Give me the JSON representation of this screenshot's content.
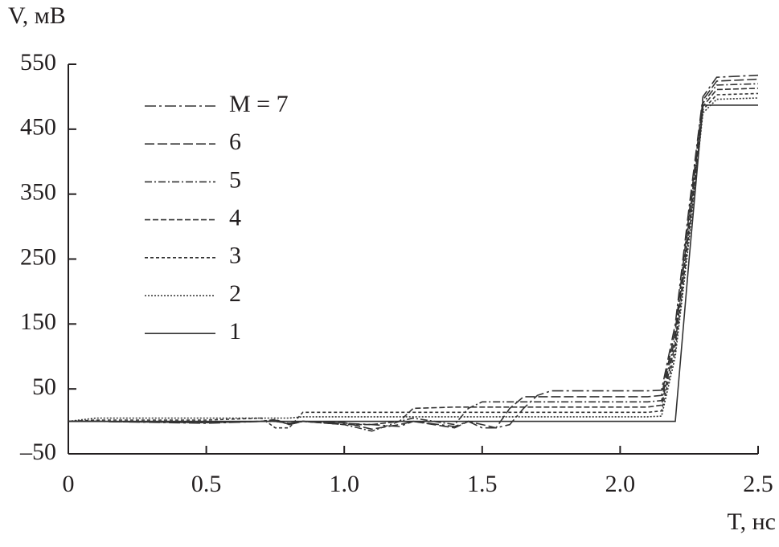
{
  "chart_data": {
    "type": "line",
    "y_label": "V, мВ",
    "x_label": "T, нс",
    "x": [
      0,
      0.1,
      0.5,
      0.7,
      0.75,
      0.8,
      0.85,
      1.0,
      1.1,
      1.2,
      1.25,
      1.4,
      1.45,
      1.5,
      1.55,
      1.6,
      1.65,
      1.7,
      1.75,
      2.1,
      2.15,
      2.2,
      2.25,
      2.3,
      2.35,
      2.5
    ],
    "series": [
      {
        "name": "M = 7",
        "color": "#333333",
        "dash": "14 4 3 4",
        "values": [
          0,
          0,
          -3,
          0,
          2,
          -5,
          0,
          -3,
          -5,
          -8,
          0,
          -8,
          0,
          -10,
          -10,
          -5,
          20,
          40,
          47,
          47,
          48,
          150,
          330,
          500,
          530,
          533
        ]
      },
      {
        "name": "6",
        "color": "#333333",
        "dash": "12 4",
        "values": [
          0,
          0,
          -2,
          0,
          0,
          -3,
          0,
          -2,
          -12,
          -5,
          0,
          -10,
          0,
          -5,
          -10,
          20,
          38,
          38,
          38,
          38,
          40,
          140,
          320,
          495,
          524,
          527
        ]
      },
      {
        "name": "5",
        "color": "#333333",
        "dash": "9 3 2 3",
        "values": [
          0,
          0,
          -2,
          0,
          0,
          -3,
          0,
          -5,
          -15,
          0,
          5,
          -5,
          20,
          30,
          30,
          30,
          30,
          30,
          30,
          30,
          32,
          130,
          310,
          490,
          518,
          520
        ]
      },
      {
        "name": "4",
        "color": "#333333",
        "dash": "7 3",
        "values": [
          0,
          0,
          -2,
          0,
          3,
          -5,
          0,
          -5,
          -5,
          0,
          20,
          22,
          22,
          22,
          22,
          22,
          22,
          22,
          22,
          22,
          25,
          120,
          300,
          485,
          511,
          513
        ]
      },
      {
        "name": "3",
        "color": "#333333",
        "dash": "4 3",
        "values": [
          0,
          2,
          2,
          5,
          -10,
          -10,
          14,
          14,
          14,
          14,
          14,
          14,
          14,
          14,
          14,
          14,
          14,
          14,
          14,
          14,
          16,
          110,
          290,
          480,
          503,
          505
        ]
      },
      {
        "name": "2",
        "color": "#333333",
        "dash": "2 2",
        "values": [
          0,
          5,
          5,
          5,
          5,
          5,
          7,
          7,
          7,
          7,
          7,
          7,
          7,
          7,
          7,
          7,
          7,
          7,
          7,
          7,
          8,
          100,
          280,
          475,
          496,
          498
        ]
      },
      {
        "name": "1",
        "color": "#333333",
        "dash": "none",
        "values": [
          0,
          0,
          0,
          0,
          0,
          0,
          0,
          0,
          0,
          0,
          0,
          0,
          0,
          0,
          0,
          0,
          0,
          0,
          0,
          0,
          0,
          0,
          250,
          487,
          487,
          487
        ]
      }
    ],
    "xlim": [
      0,
      2.5
    ],
    "xticks": [
      0,
      0.5,
      {
        "value": 1,
        "label": "1.0"
      },
      1.5,
      {
        "value": 2,
        "label": "2.0"
      },
      2.5
    ],
    "ylim": [
      -50,
      550
    ],
    "yticks": [
      {
        "value": -50,
        "label": "–50"
      },
      50,
      150,
      250,
      350,
      450,
      550
    ]
  }
}
